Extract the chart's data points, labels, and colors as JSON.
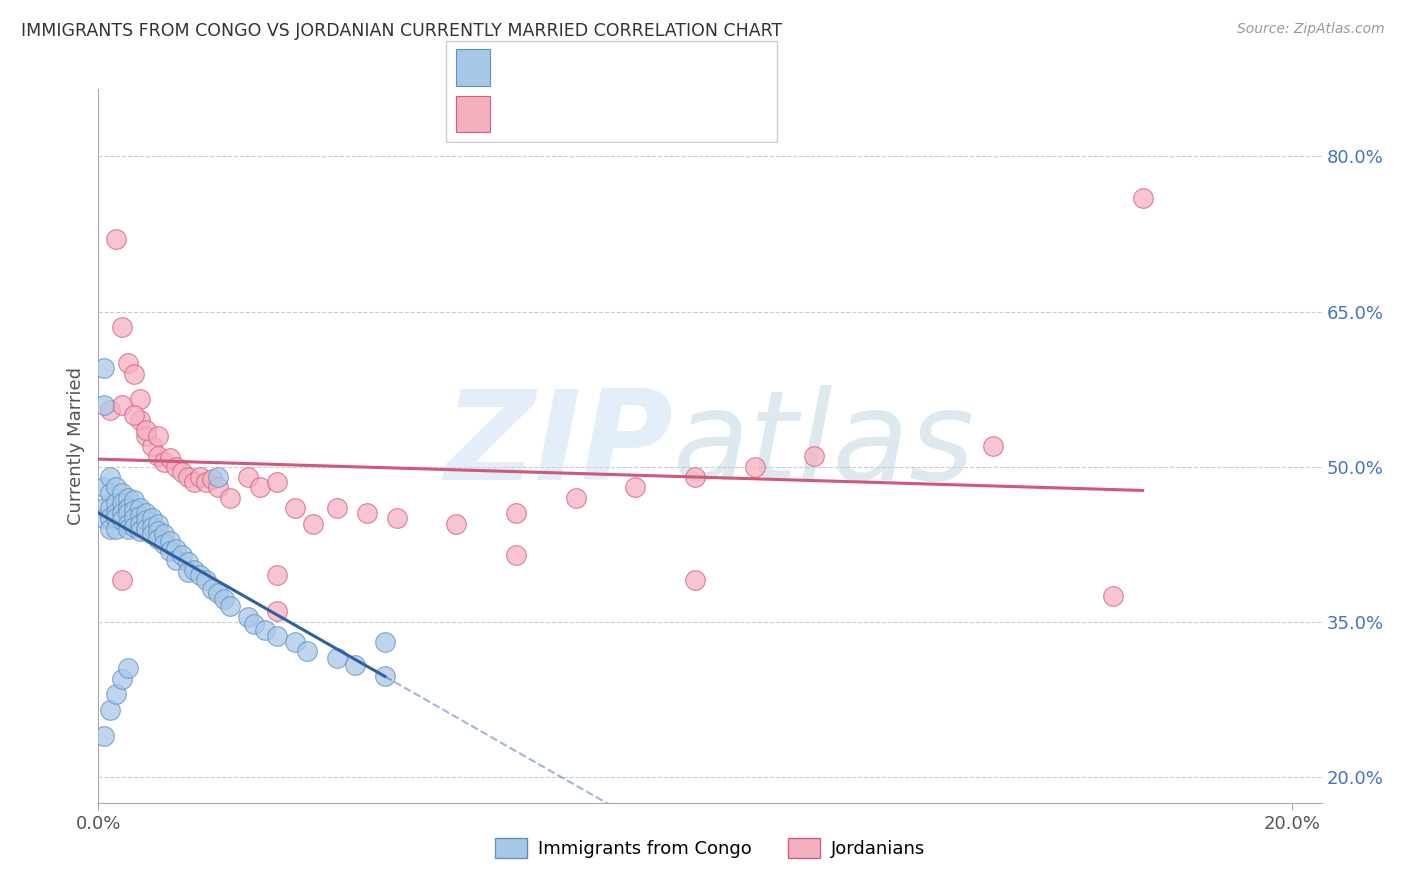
{
  "title": "IMMIGRANTS FROM CONGO VS JORDANIAN CURRENTLY MARRIED CORRELATION CHART",
  "source": "Source: ZipAtlas.com",
  "ylabel": "Currently Married",
  "xlim": [
    0.0,
    0.205
  ],
  "ylim": [
    0.175,
    0.865
  ],
  "yticks": [
    0.2,
    0.35,
    0.5,
    0.65,
    0.8
  ],
  "xticks": [
    0.0,
    0.2
  ],
  "xtick_labels": [
    "0.0%",
    "20.0%"
  ],
  "right_ytick_labels": [
    "20.0%",
    "35.0%",
    "50.0%",
    "65.0%",
    "80.0%"
  ],
  "blue_color": "#a8c8e8",
  "pink_color": "#f5b0c0",
  "blue_edge_color": "#6090c0",
  "pink_edge_color": "#d06080",
  "blue_line_color": "#3060a0",
  "pink_line_color": "#d05878",
  "right_label_color": "#4472C4",
  "blue_scatter_x": [
    0.001,
    0.001,
    0.001,
    0.001,
    0.001,
    0.002,
    0.002,
    0.002,
    0.002,
    0.002,
    0.003,
    0.003,
    0.003,
    0.003,
    0.003,
    0.004,
    0.004,
    0.004,
    0.004,
    0.005,
    0.005,
    0.005,
    0.005,
    0.005,
    0.006,
    0.006,
    0.006,
    0.006,
    0.007,
    0.007,
    0.007,
    0.007,
    0.008,
    0.008,
    0.008,
    0.009,
    0.009,
    0.009,
    0.01,
    0.01,
    0.01,
    0.011,
    0.011,
    0.012,
    0.012,
    0.013,
    0.013,
    0.014,
    0.015,
    0.015,
    0.016,
    0.017,
    0.018,
    0.019,
    0.02,
    0.021,
    0.022,
    0.025,
    0.026,
    0.028,
    0.03,
    0.033,
    0.035,
    0.04,
    0.043,
    0.048,
    0.001,
    0.002,
    0.003,
    0.004,
    0.005,
    0.02,
    0.048
  ],
  "blue_scatter_y": [
    0.595,
    0.56,
    0.48,
    0.46,
    0.45,
    0.49,
    0.475,
    0.46,
    0.45,
    0.44,
    0.48,
    0.465,
    0.455,
    0.45,
    0.44,
    0.475,
    0.465,
    0.455,
    0.448,
    0.47,
    0.46,
    0.455,
    0.445,
    0.44,
    0.468,
    0.458,
    0.45,
    0.442,
    0.46,
    0.452,
    0.445,
    0.438,
    0.455,
    0.448,
    0.44,
    0.45,
    0.442,
    0.435,
    0.445,
    0.438,
    0.43,
    0.435,
    0.425,
    0.428,
    0.418,
    0.42,
    0.41,
    0.415,
    0.408,
    0.398,
    0.4,
    0.395,
    0.39,
    0.382,
    0.378,
    0.372,
    0.365,
    0.355,
    0.348,
    0.342,
    0.336,
    0.33,
    0.322,
    0.315,
    0.308,
    0.298,
    0.24,
    0.265,
    0.28,
    0.295,
    0.305,
    0.49,
    0.33
  ],
  "pink_scatter_x": [
    0.003,
    0.004,
    0.005,
    0.006,
    0.007,
    0.007,
    0.008,
    0.009,
    0.01,
    0.011,
    0.012,
    0.013,
    0.014,
    0.015,
    0.016,
    0.017,
    0.018,
    0.019,
    0.02,
    0.022,
    0.025,
    0.027,
    0.03,
    0.033,
    0.036,
    0.04,
    0.045,
    0.05,
    0.06,
    0.07,
    0.08,
    0.09,
    0.1,
    0.11,
    0.12,
    0.15,
    0.175,
    0.002,
    0.004,
    0.006,
    0.008,
    0.01,
    0.03,
    0.07,
    0.1,
    0.17,
    0.004,
    0.03
  ],
  "pink_scatter_y": [
    0.72,
    0.635,
    0.6,
    0.59,
    0.565,
    0.545,
    0.53,
    0.52,
    0.51,
    0.505,
    0.508,
    0.5,
    0.495,
    0.49,
    0.485,
    0.49,
    0.485,
    0.488,
    0.48,
    0.47,
    0.49,
    0.48,
    0.485,
    0.46,
    0.445,
    0.46,
    0.455,
    0.45,
    0.445,
    0.455,
    0.47,
    0.48,
    0.49,
    0.5,
    0.51,
    0.52,
    0.76,
    0.555,
    0.56,
    0.55,
    0.535,
    0.53,
    0.395,
    0.415,
    0.39,
    0.375,
    0.39,
    0.36
  ]
}
